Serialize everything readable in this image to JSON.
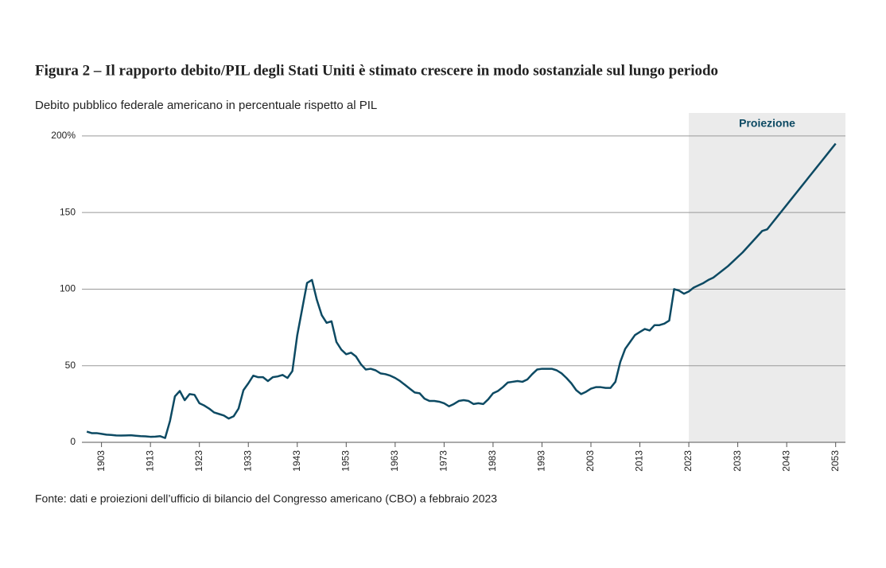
{
  "chart_data": {
    "type": "line",
    "title": "Figura 2 – Il rapporto debito/PIL degli Stati Uniti è stimato crescere in modo sostanziale sul lungo periodo",
    "subtitle": "Debito pubblico federale americano in percentuale rispetto al PIL",
    "source": "Fonte: dati e proiezioni dell’ufficio di bilancio del Congresso americano (CBO) a febbraio 2023",
    "projection_label": "Proiezione",
    "projection_start": 2023,
    "projection_color": "#ebebeb",
    "x": [
      1900,
      1901,
      1902,
      1903,
      1904,
      1905,
      1906,
      1907,
      1908,
      1909,
      1910,
      1911,
      1912,
      1913,
      1914,
      1915,
      1916,
      1917,
      1918,
      1919,
      1920,
      1921,
      1922,
      1923,
      1924,
      1925,
      1926,
      1927,
      1928,
      1929,
      1930,
      1931,
      1932,
      1933,
      1934,
      1935,
      1936,
      1937,
      1938,
      1939,
      1940,
      1941,
      1942,
      1943,
      1944,
      1945,
      1946,
      1947,
      1948,
      1949,
      1950,
      1951,
      1952,
      1953,
      1954,
      1955,
      1956,
      1957,
      1958,
      1959,
      1960,
      1961,
      1962,
      1963,
      1964,
      1965,
      1966,
      1967,
      1968,
      1969,
      1970,
      1971,
      1972,
      1973,
      1974,
      1975,
      1976,
      1977,
      1978,
      1979,
      1980,
      1981,
      1982,
      1983,
      1984,
      1985,
      1986,
      1987,
      1988,
      1989,
      1990,
      1991,
      1992,
      1993,
      1994,
      1995,
      1996,
      1997,
      1998,
      1999,
      2000,
      2001,
      2002,
      2003,
      2004,
      2005,
      2006,
      2007,
      2008,
      2009,
      2010,
      2011,
      2012,
      2013,
      2014,
      2015,
      2016,
      2017,
      2018,
      2019,
      2020,
      2021,
      2022,
      2023,
      2024,
      2025,
      2026,
      2027,
      2028,
      2029,
      2030,
      2031,
      2032,
      2033,
      2034,
      2035,
      2036,
      2037,
      2038,
      2039,
      2040,
      2041,
      2042,
      2043,
      2044,
      2045,
      2046,
      2047,
      2048,
      2049,
      2050,
      2051,
      2052,
      2053
    ],
    "series": [
      {
        "name": "Debito/PIL",
        "color": "#0d4a63",
        "values": [
          7,
          6,
          6,
          5.5,
          5,
          4.8,
          4.5,
          4.4,
          4.5,
          4.6,
          4.3,
          4,
          3.9,
          3.6,
          3.7,
          4,
          2.8,
          14,
          30,
          33.5,
          27.5,
          31.5,
          31,
          25.5,
          24,
          22,
          19.5,
          18.5,
          17.5,
          15.5,
          17,
          22,
          34,
          38.5,
          43.5,
          42.5,
          42.5,
          40,
          42.5,
          43,
          44,
          42,
          46.5,
          70,
          87,
          104,
          106,
          93,
          83,
          78,
          79,
          65.5,
          60.5,
          57.5,
          58.5,
          56,
          51,
          47.5,
          48,
          47,
          45,
          44.5,
          43.5,
          42,
          40,
          37.5,
          35,
          32.5,
          32,
          28.5,
          27,
          27,
          26.5,
          25.5,
          23.5,
          25,
          27,
          27.5,
          27,
          25,
          25.5,
          25,
          28,
          32,
          33.5,
          36,
          39,
          39.5,
          40,
          39.5,
          41,
          44.5,
          47.5,
          48,
          48,
          48,
          47,
          45,
          42,
          38.5,
          34,
          31.5,
          33,
          35,
          36,
          36,
          35.5,
          35.5,
          39.5,
          52.5,
          61,
          65.5,
          70,
          72,
          74,
          73,
          76.5,
          76.5,
          77.5,
          79.5,
          100,
          99,
          97,
          98.5,
          101,
          102.5,
          104,
          106,
          107.5,
          110,
          112.5,
          115,
          118,
          121,
          124,
          127.5,
          131,
          134.5,
          138,
          139,
          143,
          147,
          151,
          155,
          159,
          163,
          167,
          171,
          175,
          179,
          183,
          187,
          191,
          195
        ]
      }
    ],
    "xlim": [
      1899,
      2055
    ],
    "xticks": [
      1903,
      1913,
      1923,
      1933,
      1943,
      1953,
      1963,
      1973,
      1983,
      1993,
      2003,
      2013,
      2023,
      2033,
      2043,
      2053
    ],
    "ylim": [
      0,
      215
    ],
    "yticks": [
      0,
      50,
      100,
      150,
      {
        "value": 200,
        "label": "200%"
      }
    ],
    "grid": true
  }
}
